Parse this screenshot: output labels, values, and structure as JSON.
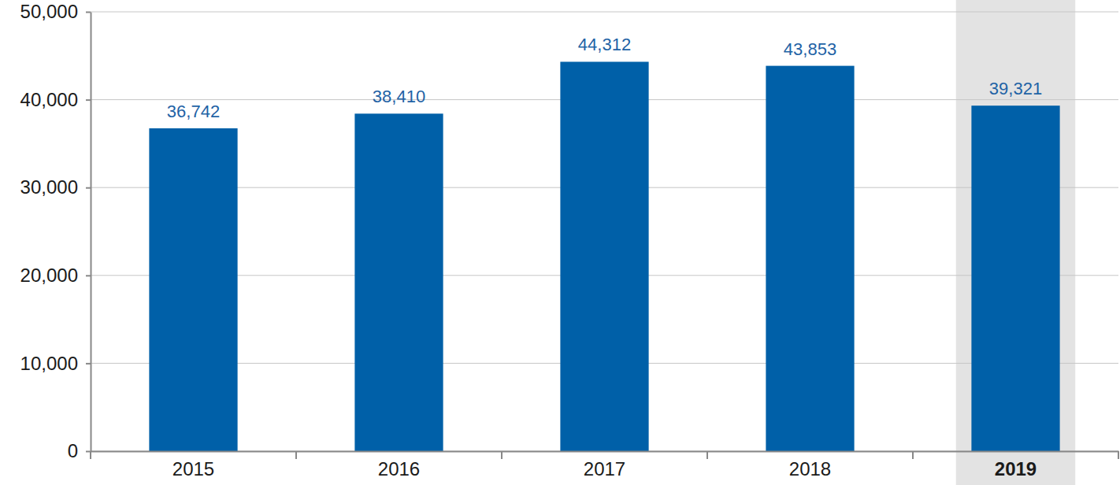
{
  "chart_data": {
    "type": "bar",
    "categories": [
      "2015",
      "2016",
      "2017",
      "2018",
      "2019"
    ],
    "values": [
      36742,
      38410,
      44312,
      43853,
      39321
    ],
    "value_labels": [
      "36,742",
      "38,410",
      "44,312",
      "43,853",
      "39,321"
    ],
    "data_labels": true,
    "color": "#0060a8",
    "ylim": [
      0,
      50000
    ],
    "yticks": [
      0,
      {
        "value": 10000,
        "label": "10,000"
      },
      {
        "value": 20000,
        "label": "20,000"
      },
      {
        "value": 30000,
        "label": "30,000"
      },
      {
        "value": 40000,
        "label": "40,000"
      },
      {
        "value": 50000,
        "label": "50,000"
      }
    ],
    "grid": true
  }
}
